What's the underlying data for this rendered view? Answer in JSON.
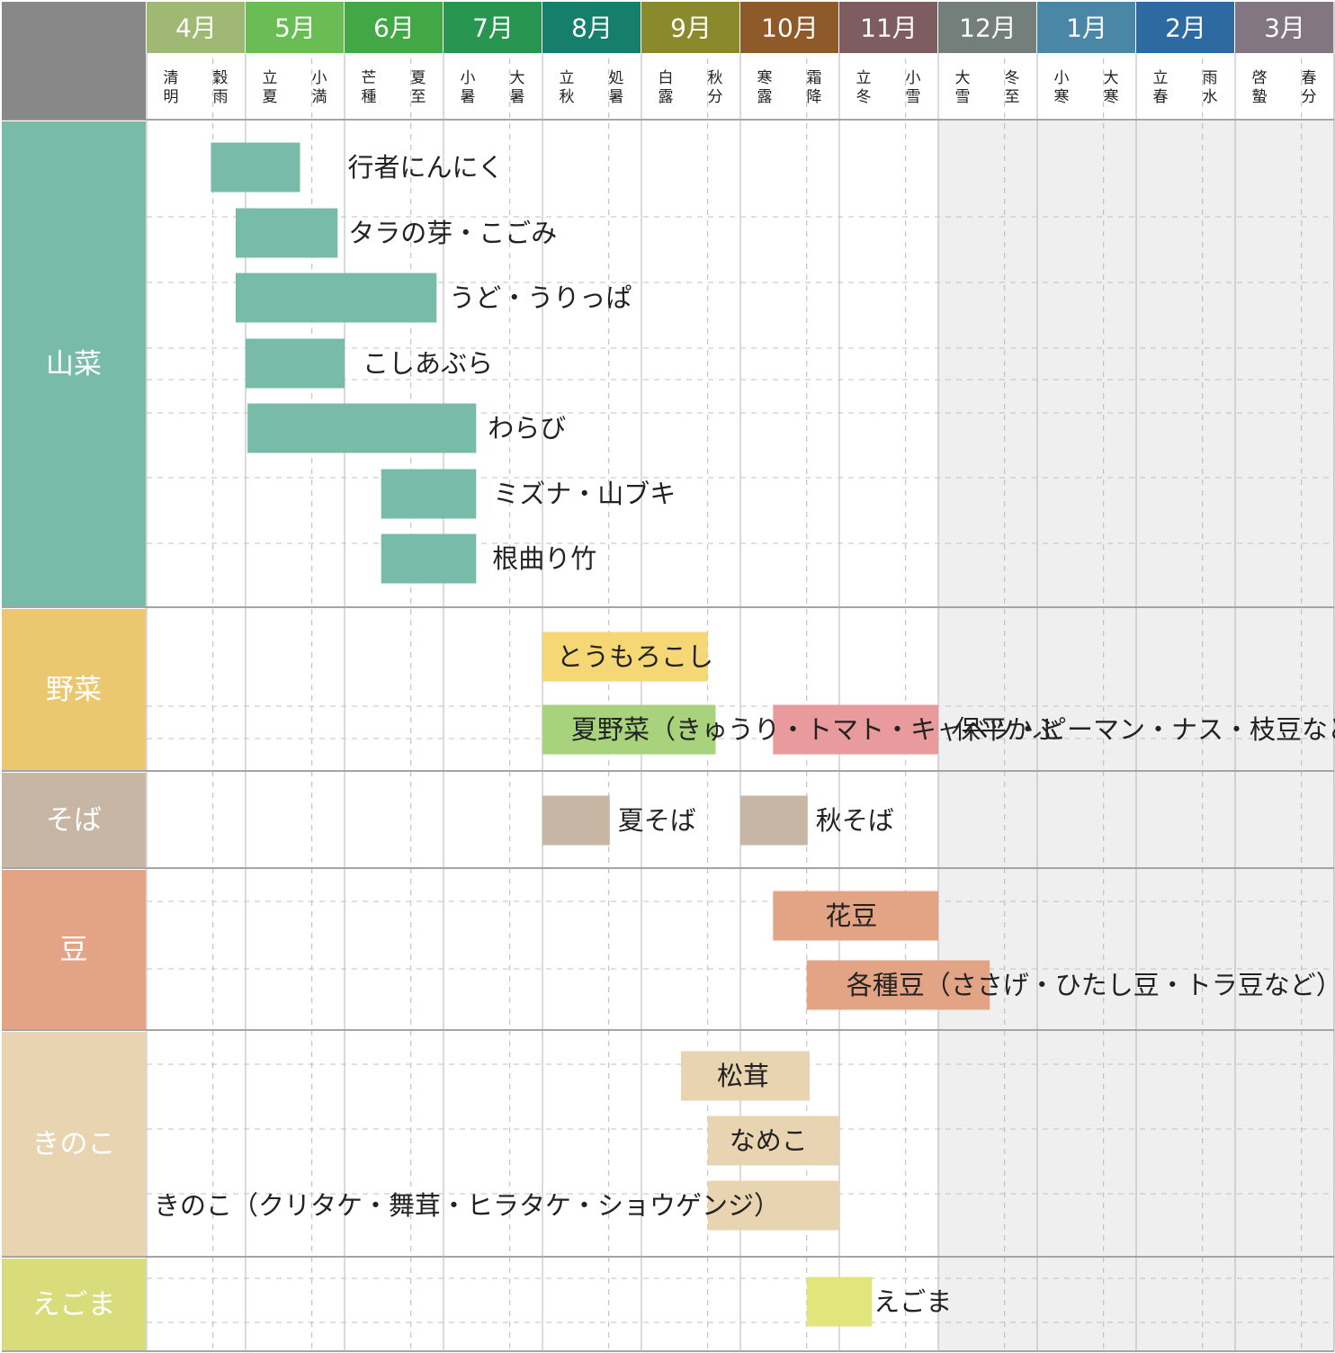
{
  "chart_data": {
    "type": "gantt",
    "title": "",
    "months": [
      {
        "label": "4月",
        "color": "#9fb873"
      },
      {
        "label": "5月",
        "color": "#6abd54"
      },
      {
        "label": "6月",
        "color": "#42a845"
      },
      {
        "label": "7月",
        "color": "#289551"
      },
      {
        "label": "8月",
        "color": "#167f6b"
      },
      {
        "label": "9月",
        "color": "#8a8a2c"
      },
      {
        "label": "10月",
        "color": "#8e5a2a"
      },
      {
        "label": "11月",
        "color": "#7e5d60"
      },
      {
        "label": "12月",
        "color": "#747f7b"
      },
      {
        "label": "1月",
        "color": "#4a86a6"
      },
      {
        "label": "2月",
        "color": "#2d6aa2"
      },
      {
        "label": "3月",
        "color": "#827683"
      }
    ],
    "sekki": [
      [
        "清明",
        "穀雨"
      ],
      [
        "立夏",
        "小満"
      ],
      [
        "芒種",
        "夏至"
      ],
      [
        "小暑",
        "大暑"
      ],
      [
        "立秋",
        "処暑"
      ],
      [
        "白露",
        "秋分"
      ],
      [
        "寒露",
        "霜降"
      ],
      [
        "立冬",
        "小雪"
      ],
      [
        "大雪",
        "冬至"
      ],
      [
        "小寒",
        "大寒"
      ],
      [
        "立春",
        "雨水"
      ],
      [
        "啓蟄",
        "春分"
      ]
    ],
    "off_season_start_month": 8,
    "categories": [
      {
        "name": "山菜",
        "color": "#78bba8",
        "text_color": "#ffffff",
        "items": [
          {
            "label": "行者にんにく",
            "start": 0.65,
            "end": 1.55,
            "color": "#78bba8"
          },
          {
            "label": "タラの芽・こごみ",
            "start": 0.9,
            "end": 1.93,
            "color": "#78bba8"
          },
          {
            "label": "うど・うりっぱ",
            "start": 0.9,
            "end": 2.93,
            "color": "#78bba8"
          },
          {
            "label": "こしあぶら",
            "start": 1.0,
            "end": 2.0,
            "color": "#78bba8"
          },
          {
            "label": "わらび",
            "start": 1.02,
            "end": 3.33,
            "color": "#78bba8"
          },
          {
            "label": "ミズナ・山ブキ",
            "start": 2.37,
            "end": 3.33,
            "color": "#78bba8"
          },
          {
            "label": "根曲り竹",
            "start": 2.37,
            "end": 3.33,
            "color": "#78bba8"
          }
        ]
      },
      {
        "name": "野菜",
        "color": "#ebc870",
        "text_color": "#ffffff",
        "items": [
          {
            "label": "とうもろこし",
            "start": 4.0,
            "end": 5.67,
            "color": "#f6d775"
          },
          {
            "label": "保平かぶ",
            "start": 6.33,
            "end": 8.0,
            "color": "#e99a9c"
          },
          {
            "label": "夏野菜（きゅうり・トマト・キャベツ・ピーマン・ナス・枝豆など）",
            "start": 4.0,
            "end": 5.75,
            "color": "#a8d37c"
          }
        ]
      },
      {
        "name": "そば",
        "color": "#c8b6a4",
        "text_color": "#ffffff",
        "items": [
          {
            "label": "夏そば",
            "start": 4.0,
            "end": 4.68,
            "color": "#c8b6a4"
          },
          {
            "label": "秋そば",
            "start": 6.0,
            "end": 6.68,
            "color": "#c8b6a4"
          }
        ]
      },
      {
        "name": "豆",
        "color": "#e3a385",
        "text_color": "#ffffff",
        "items": [
          {
            "label": "花豆",
            "start": 6.33,
            "end": 8.0,
            "color": "#e3a385"
          },
          {
            "label": "各種豆（ささげ・ひたし豆・トラ豆など）",
            "start": 6.67,
            "end": 8.52,
            "color": "#e3a385"
          }
        ]
      },
      {
        "name": "きのこ",
        "color": "#e8d4b0",
        "text_color": "#ffffff",
        "items": [
          {
            "label": "松茸",
            "start": 5.4,
            "end": 6.7,
            "color": "#e8d4b0"
          },
          {
            "label": "なめこ",
            "start": 5.67,
            "end": 7.0,
            "color": "#e8d4b0"
          },
          {
            "label": "きのこ（クリタケ・舞茸・ヒラタケ・ショウゲンジ）",
            "start": 5.67,
            "end": 7.0,
            "color": "#e8d4b0"
          }
        ]
      },
      {
        "name": "えごま",
        "color": "#d8dc7a",
        "text_color": "#ffffff",
        "items": [
          {
            "label": "えごま",
            "start": 6.67,
            "end": 7.33,
            "color": "#e2e57c"
          }
        ]
      }
    ]
  }
}
